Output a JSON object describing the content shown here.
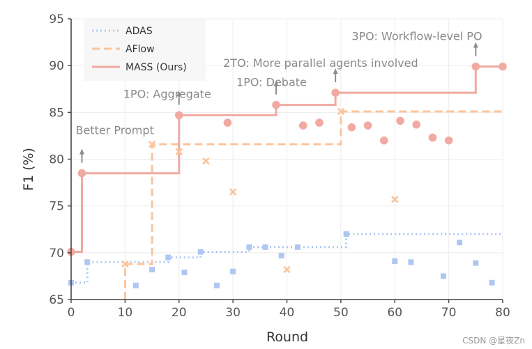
{
  "chart_data": {
    "type": "line",
    "xlabel": "Round",
    "ylabel": "F1 (%)",
    "xlim": [
      0,
      80
    ],
    "ylim": [
      65,
      95
    ],
    "xticks": [
      0,
      10,
      20,
      30,
      40,
      50,
      60,
      70,
      80
    ],
    "yticks": [
      65,
      70,
      75,
      80,
      85,
      90,
      95
    ],
    "grid": true,
    "legend_position": "top-left",
    "series": [
      {
        "name": "ADAS",
        "color": "#aec7f2",
        "line_style": "dotted",
        "marker": "square",
        "step_line": [
          [
            0,
            66.8
          ],
          [
            3,
            66.8
          ],
          [
            3,
            69.0
          ],
          [
            18,
            69.0
          ],
          [
            18,
            69.5
          ],
          [
            24,
            69.5
          ],
          [
            24,
            70.1
          ],
          [
            33,
            70.1
          ],
          [
            33,
            70.6
          ],
          [
            51,
            70.6
          ],
          [
            51,
            72.0
          ],
          [
            80,
            72.0
          ]
        ],
        "points": [
          [
            0,
            66.8
          ],
          [
            3,
            69.0
          ],
          [
            12,
            66.5
          ],
          [
            15,
            68.2
          ],
          [
            18,
            69.5
          ],
          [
            21,
            67.9
          ],
          [
            24,
            70.1
          ],
          [
            27,
            66.5
          ],
          [
            30,
            68.0
          ],
          [
            33,
            70.6
          ],
          [
            36,
            70.6
          ],
          [
            39,
            69.7
          ],
          [
            42,
            70.6
          ],
          [
            51,
            72.0
          ],
          [
            60,
            69.1
          ],
          [
            63,
            69.0
          ],
          [
            69,
            67.5
          ],
          [
            72,
            71.1
          ],
          [
            75,
            68.9
          ],
          [
            78,
            66.8
          ]
        ]
      },
      {
        "name": "AFlow",
        "color": "#fcc49a",
        "line_style": "dashed",
        "marker": "x",
        "step_line": [
          [
            10,
            65.0
          ],
          [
            10,
            68.8
          ],
          [
            15,
            68.8
          ],
          [
            15,
            81.6
          ],
          [
            50,
            81.6
          ],
          [
            50,
            85.1
          ],
          [
            80,
            85.1
          ]
        ],
        "points": [
          [
            10,
            68.8
          ],
          [
            15,
            81.6
          ],
          [
            20,
            80.8
          ],
          [
            25,
            79.8
          ],
          [
            30,
            76.5
          ],
          [
            40,
            68.2
          ],
          [
            50,
            85.1
          ],
          [
            60,
            75.7
          ]
        ]
      },
      {
        "name": "MASS (Ours)",
        "color": "#f1aaa2",
        "line_style": "solid",
        "marker": "circle",
        "step_line": [
          [
            0,
            70.1
          ],
          [
            2,
            70.1
          ],
          [
            2,
            78.5
          ],
          [
            20,
            78.5
          ],
          [
            20,
            84.7
          ],
          [
            38,
            84.7
          ],
          [
            38,
            85.8
          ],
          [
            49,
            85.8
          ],
          [
            49,
            87.1
          ],
          [
            75,
            87.1
          ],
          [
            75,
            89.9
          ],
          [
            80,
            89.9
          ]
        ],
        "points": [
          [
            0,
            70.1
          ],
          [
            2,
            78.5
          ],
          [
            20,
            84.7
          ],
          [
            29,
            83.9
          ],
          [
            38,
            85.8
          ],
          [
            43,
            83.6
          ],
          [
            46,
            83.9
          ],
          [
            49,
            87.1
          ],
          [
            52,
            83.4
          ],
          [
            55,
            83.6
          ],
          [
            58,
            82.0
          ],
          [
            61,
            84.1
          ],
          [
            64,
            83.7
          ],
          [
            67,
            82.3
          ],
          [
            70,
            82.0
          ],
          [
            75,
            89.9
          ],
          [
            80,
            89.9
          ]
        ]
      }
    ],
    "annotations": [
      {
        "text": "Better Prompt",
        "x": 2,
        "y": 78.5
      },
      {
        "text": "1PO: Aggregate",
        "x": 20,
        "y": 84.7
      },
      {
        "text": "1PO: Debate",
        "x": 38,
        "y": 85.8
      },
      {
        "text": "2TO: More parallel agents involved",
        "x": 49,
        "y": 87.1
      },
      {
        "text": "3PO: Workflow-level PO",
        "x": 75,
        "y": 89.9
      }
    ]
  },
  "watermark": "CSDN @星夜Zn"
}
